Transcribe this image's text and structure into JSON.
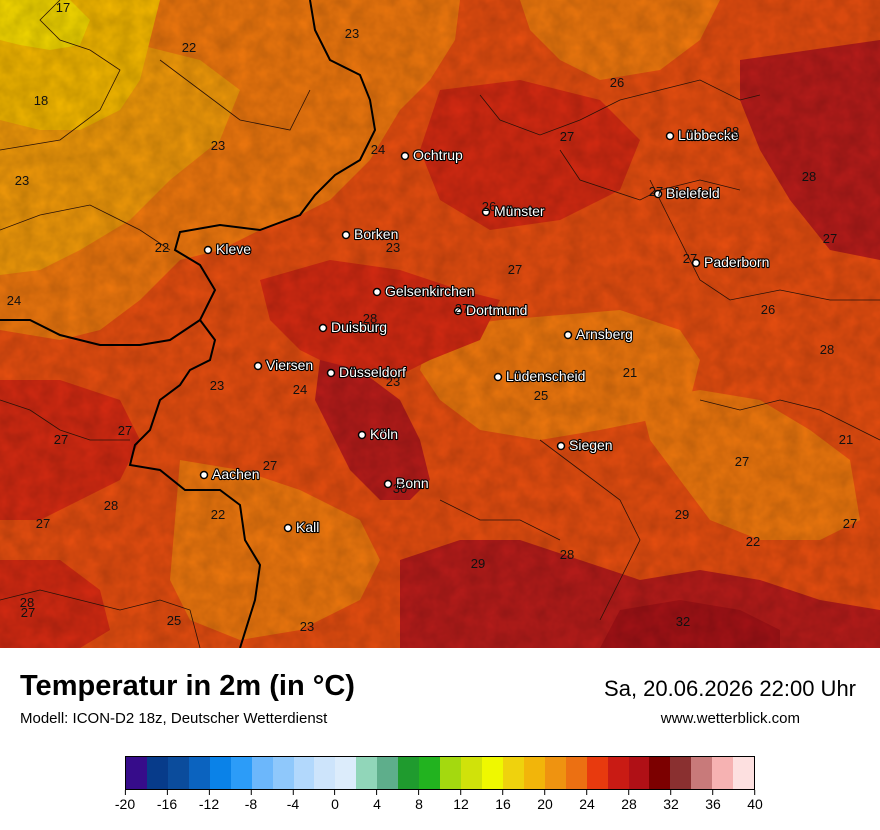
{
  "header": {
    "title": "Temperatur in 2m (in °C)",
    "subtitle": "Modell: ICON-D2 18z, Deutscher Wetterdienst",
    "datetime": "Sa, 20.06.2026 22:00 Uhr",
    "website": "www.wetterblick.com"
  },
  "map": {
    "cities": [
      {
        "name": "Lübbecke"
      },
      {
        "name": "Ochtrup"
      },
      {
        "name": "Bielefeld"
      },
      {
        "name": "Münster"
      },
      {
        "name": "Borken"
      },
      {
        "name": "Kleve"
      },
      {
        "name": "Paderborn"
      },
      {
        "name": "Gelsenkirchen"
      },
      {
        "name": "Dortmund"
      },
      {
        "name": "Duisburg"
      },
      {
        "name": "Arnsberg"
      },
      {
        "name": "Viersen"
      },
      {
        "name": "Düsseldorf"
      },
      {
        "name": "Lüdenscheid"
      },
      {
        "name": "Köln"
      },
      {
        "name": "Siegen"
      },
      {
        "name": "Aachen"
      },
      {
        "name": "Bonn"
      },
      {
        "name": "Kall"
      }
    ],
    "temperature_values": [
      {
        "value": "17"
      },
      {
        "value": "22"
      },
      {
        "value": "23"
      },
      {
        "value": "18"
      },
      {
        "value": "23"
      },
      {
        "value": "24"
      },
      {
        "value": "26"
      },
      {
        "value": "27"
      },
      {
        "value": "28"
      },
      {
        "value": "23"
      },
      {
        "value": "28"
      },
      {
        "value": "22"
      },
      {
        "value": "23"
      },
      {
        "value": "26"
      },
      {
        "value": "27"
      },
      {
        "value": "27"
      },
      {
        "value": "24"
      },
      {
        "value": "28"
      },
      {
        "value": "26"
      },
      {
        "value": "28"
      },
      {
        "value": "21"
      },
      {
        "value": "23"
      },
      {
        "value": "24"
      },
      {
        "value": "23"
      },
      {
        "value": "25"
      },
      {
        "value": "27"
      },
      {
        "value": "27"
      },
      {
        "value": "21"
      },
      {
        "value": "27"
      },
      {
        "value": "27"
      },
      {
        "value": "28"
      },
      {
        "value": "30"
      },
      {
        "value": "27"
      },
      {
        "value": "22"
      },
      {
        "value": "29"
      },
      {
        "value": "22"
      },
      {
        "value": "27"
      },
      {
        "value": "28"
      },
      {
        "value": "29"
      },
      {
        "value": "27"
      },
      {
        "value": "25"
      },
      {
        "value": "23"
      },
      {
        "value": "32"
      },
      {
        "value": "28"
      },
      {
        "value": "27"
      },
      {
        "value": "27"
      },
      {
        "value": "27"
      }
    ],
    "colors": {
      "t16_18": "#f4d800",
      "t18_20": "#f4b800",
      "t20_22": "#f29a0a",
      "t22_24": "#f0780e",
      "t24_26": "#e84e10",
      "t26_28": "#d62a12",
      "t28_30": "#b81c1a",
      "t30_32": "#a51216",
      "border": "#000000",
      "district": "#2a1208"
    }
  },
  "legend": {
    "colors": [
      "#360c8a",
      "#073b8a",
      "#0b4c9c",
      "#0b63bf",
      "#0a82e8",
      "#2c9cf8",
      "#6cb7fb",
      "#8fc8fb",
      "#b2d8fc",
      "#cde4fb",
      "#dcecfb",
      "#91d6b9",
      "#5eae8b",
      "#1f9b2e",
      "#22b31f",
      "#a4d90f",
      "#d0e20a",
      "#eff800",
      "#efd20d",
      "#f2b50a",
      "#ef9310",
      "#ec7012",
      "#e83a0e",
      "#c91b14",
      "#b01016",
      "#7c0000",
      "#8a3030",
      "#c87a7a",
      "#f6b2b2",
      "#fde0e0"
    ],
    "ticks": [
      "-20",
      "-16",
      "-12",
      "-8",
      "-4",
      "0",
      "4",
      "8",
      "12",
      "16",
      "20",
      "24",
      "28",
      "32",
      "36",
      "40"
    ]
  }
}
